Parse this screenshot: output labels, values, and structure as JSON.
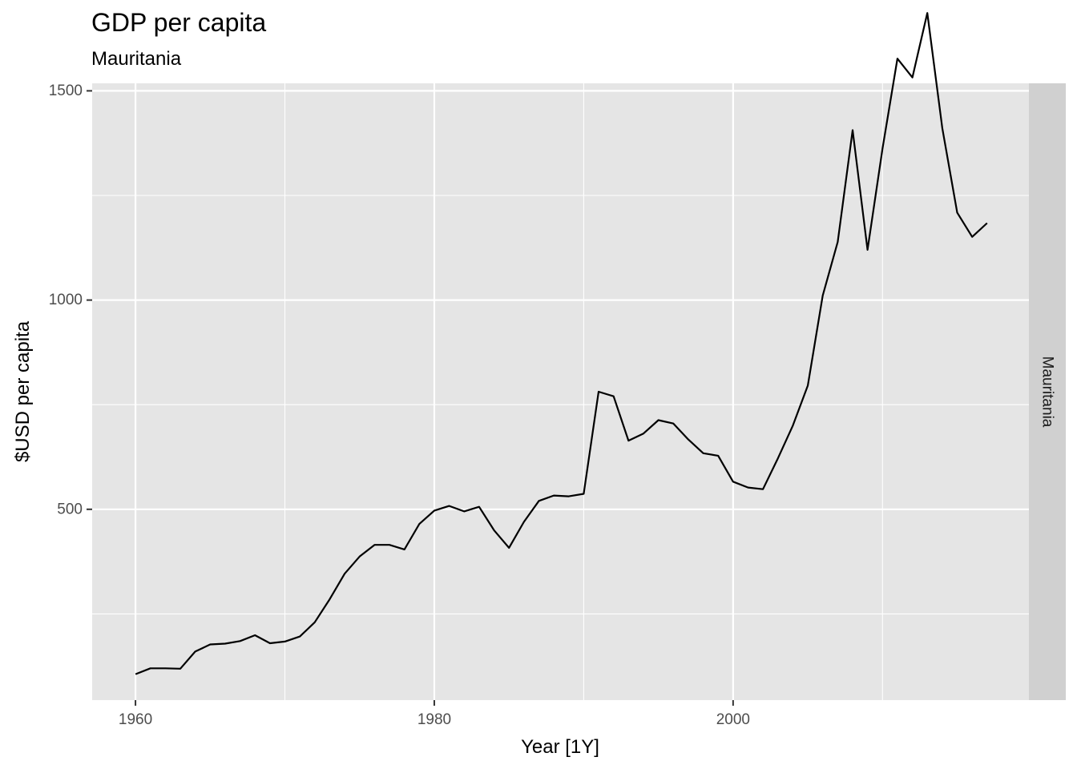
{
  "chart_data": {
    "type": "line",
    "title": "GDP per capita",
    "subtitle": "Mauritania",
    "xlabel": "Year [1Y]",
    "ylabel": "$USD per capita",
    "facet_label": "Mauritania",
    "xlim": [
      1957.1,
      2019.8
    ],
    "ylim": [
      44,
      1518
    ],
    "x_ticks": [
      1960,
      1980,
      2000
    ],
    "x_tick_labels": [
      "1960",
      "1980",
      "2000"
    ],
    "x_minor_ticks": [
      1970,
      1990,
      2010
    ],
    "y_ticks": [
      500,
      1000,
      1500
    ],
    "y_tick_labels": [
      "500",
      "1000",
      "1500"
    ],
    "y_minor_ticks": [
      250,
      750,
      1250
    ],
    "grid": true,
    "line_color": "#000000",
    "panel_color": "#e5e5e5",
    "strip_color": "#d0d0d0",
    "series": [
      {
        "x": [
          1960,
          1961,
          1962,
          1963,
          1964,
          1965,
          1966,
          1967,
          1968,
          1969,
          1970,
          1971,
          1972,
          1973,
          1974,
          1975,
          1976,
          1977,
          1978,
          1979,
          1980,
          1981,
          1982,
          1983,
          1984,
          1985,
          1986,
          1987,
          1988,
          1989,
          1990,
          1991,
          1992,
          1993,
          1994,
          1995,
          1996,
          1997,
          1998,
          1999,
          2000,
          2001,
          2002,
          2003,
          2004,
          2005,
          2006,
          2007,
          2008,
          2009,
          2010,
          2011,
          2012,
          2013,
          2014,
          2015,
          2016,
          2017
        ],
        "values": [
          106,
          120,
          120,
          119,
          160,
          177,
          179,
          185,
          199,
          180,
          184,
          196,
          230,
          285,
          346,
          387,
          415,
          415,
          404,
          465,
          497,
          508,
          495,
          506,
          450,
          408,
          470,
          520,
          533,
          531,
          537,
          781,
          770,
          664,
          681,
          713,
          705,
          667,
          634,
          628,
          566,
          552,
          548,
          622,
          700,
          796,
          1011,
          1139,
          1406,
          1120,
          1362,
          1577,
          1532,
          1686,
          1411,
          1209,
          1151,
          1184
        ]
      }
    ]
  }
}
